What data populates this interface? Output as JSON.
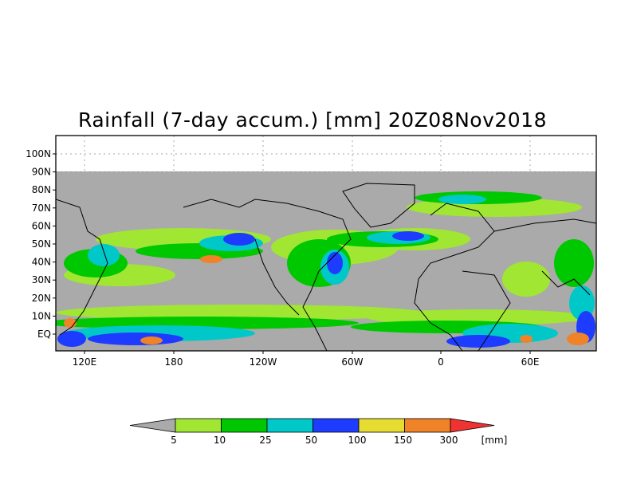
{
  "title": "Rainfall (7-day accum.) [mm] 20Z08Nov2018",
  "map": {
    "y_ticks": [
      "100N",
      "90N",
      "80N",
      "70N",
      "60N",
      "50N",
      "40N",
      "30N",
      "20N",
      "10N",
      "EQ"
    ],
    "x_ticks": [
      "120E",
      "180",
      "120W",
      "60W",
      "0",
      "60E"
    ],
    "no_data_color": "#aaaaaa"
  },
  "colorbar": {
    "unit": "[mm]",
    "labels": [
      "5",
      "10",
      "25",
      "50",
      "100",
      "150",
      "300"
    ],
    "colors": [
      "#aaaaaa",
      "#a0e632",
      "#00c800",
      "#00c8c8",
      "#1e3cff",
      "#e6dc32",
      "#f08228",
      "#f03232"
    ]
  }
}
